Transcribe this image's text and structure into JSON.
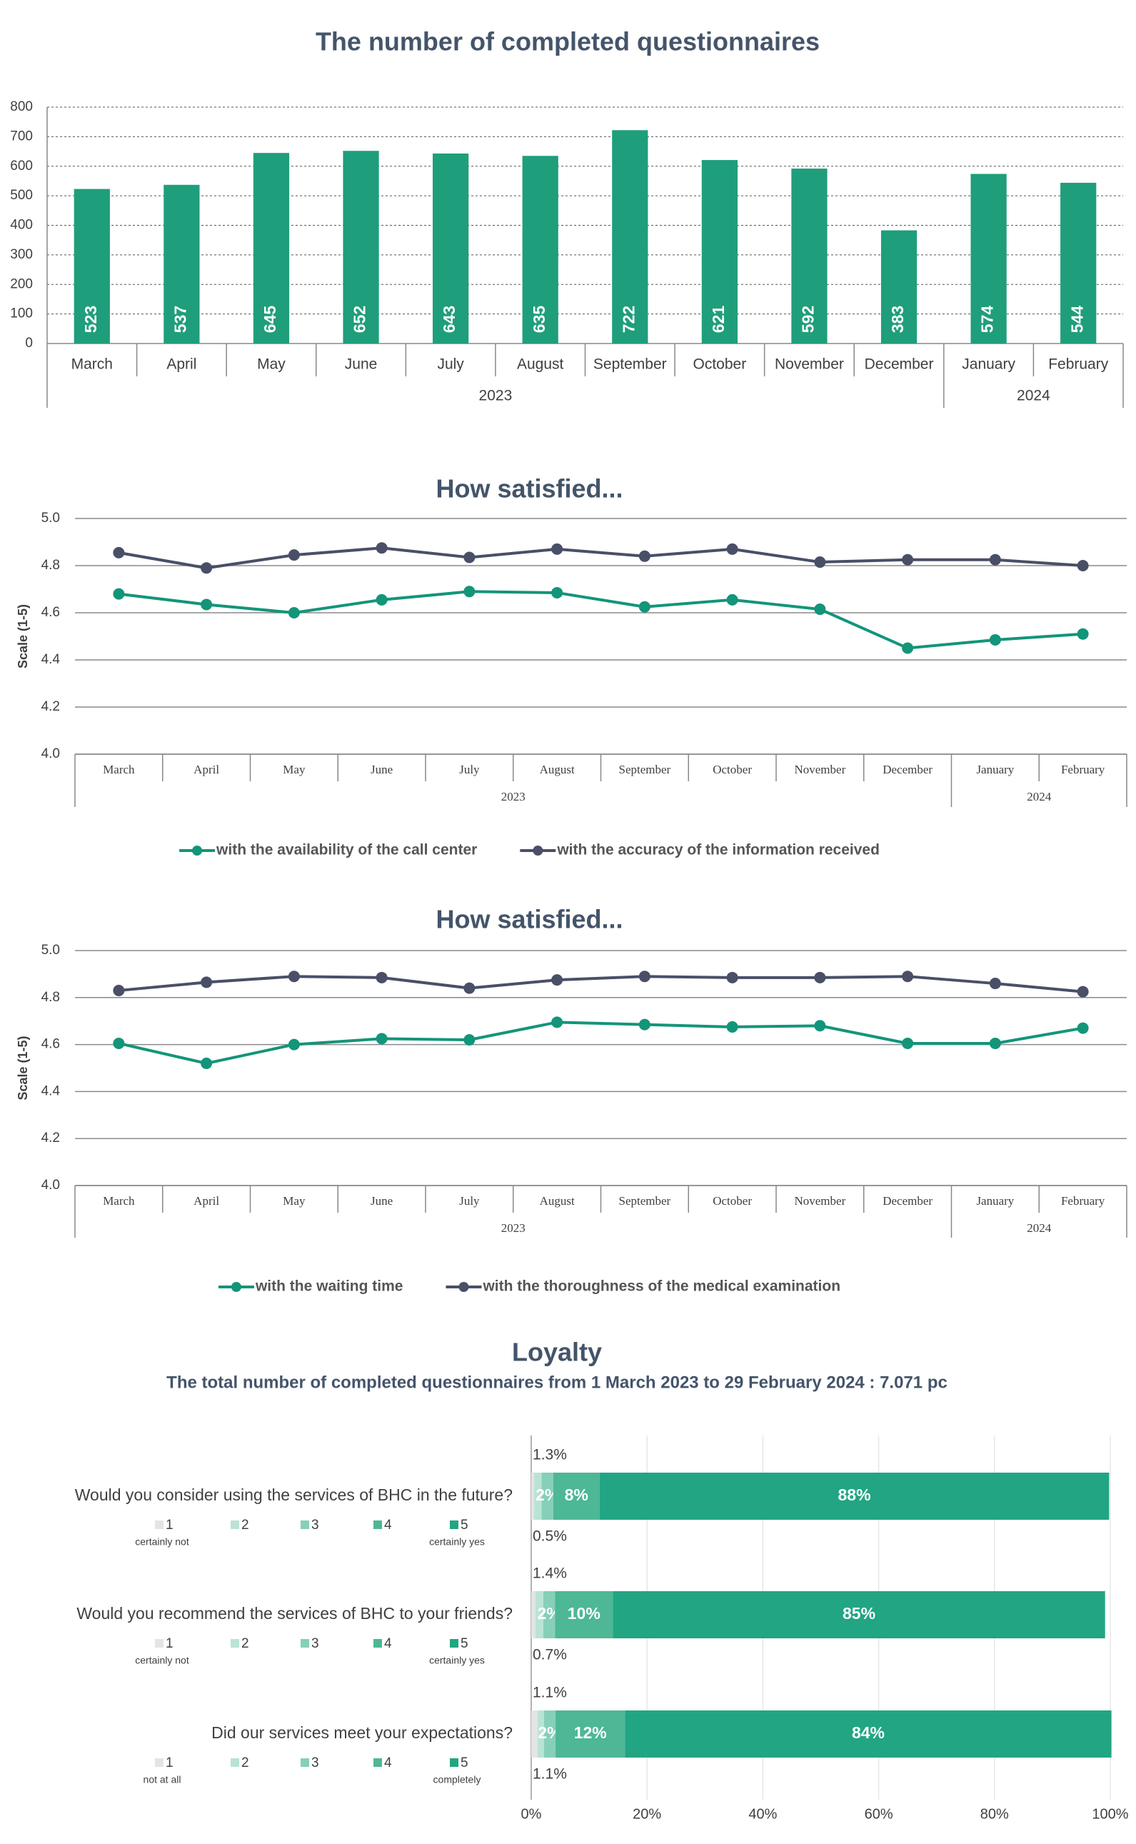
{
  "chart_data": [
    {
      "type": "bar",
      "title": "The number of completed questionnaires",
      "categories": [
        "March",
        "April",
        "May",
        "June",
        "July",
        "August",
        "September",
        "October",
        "November",
        "December",
        "January",
        "February"
      ],
      "groups": [
        {
          "name": "2023",
          "count": 10
        },
        {
          "name": "2024",
          "count": 2
        }
      ],
      "values": [
        523,
        537,
        645,
        652,
        643,
        635,
        722,
        621,
        592,
        383,
        574,
        544
      ],
      "color": "#1f9e7b",
      "ylim": [
        0,
        800
      ],
      "yticks": [
        0,
        100,
        200,
        300,
        400,
        500,
        600,
        700,
        800
      ],
      "grid": true
    },
    {
      "type": "line",
      "title": "How satisfied...",
      "ylabel": "Scale (1-5)",
      "categories": [
        "March",
        "April",
        "May",
        "June",
        "July",
        "August",
        "September",
        "October",
        "November",
        "December",
        "January",
        "February"
      ],
      "groups": [
        {
          "name": "2023",
          "count": 10
        },
        {
          "name": "2024",
          "count": 2
        }
      ],
      "series": [
        {
          "name": "with the availability of the call center",
          "color": "#13957a",
          "values": [
            4.68,
            4.635,
            4.6,
            4.655,
            4.69,
            4.685,
            4.625,
            4.655,
            4.615,
            4.45,
            4.485,
            4.51
          ]
        },
        {
          "name": "with the accuracy of the information received",
          "color": "#4a4f68",
          "values": [
            4.855,
            4.79,
            4.845,
            4.875,
            4.835,
            4.87,
            4.84,
            4.87,
            4.815,
            4.825,
            4.825,
            4.8
          ]
        }
      ],
      "ylim": [
        4,
        5
      ],
      "yticks": [
        {
          "value": 4,
          "label": "4.0"
        },
        4.2,
        4.4,
        4.6,
        4.8,
        {
          "value": 5,
          "label": "5.0"
        }
      ],
      "grid": true
    },
    {
      "type": "line",
      "title": "How satisfied...",
      "ylabel": "Scale (1-5)",
      "categories": [
        "March",
        "April",
        "May",
        "June",
        "July",
        "August",
        "September",
        "October",
        "November",
        "December",
        "January",
        "February"
      ],
      "groups": [
        {
          "name": "2023",
          "count": 10
        },
        {
          "name": "2024",
          "count": 2
        }
      ],
      "series": [
        {
          "name": "with the waiting time",
          "color": "#13957a",
          "values": [
            4.605,
            4.52,
            4.6,
            4.625,
            4.62,
            4.695,
            4.685,
            4.675,
            4.68,
            4.605,
            4.605,
            4.67
          ]
        },
        {
          "name": "with the thoroughness of the medical examination",
          "color": "#4a4f68",
          "values": [
            4.83,
            4.865,
            4.89,
            4.885,
            4.84,
            4.875,
            4.89,
            4.885,
            4.885,
            4.89,
            4.86,
            4.825
          ]
        }
      ],
      "ylim": [
        4,
        5
      ],
      "yticks": [
        {
          "value": 4,
          "label": "4.0"
        },
        4.2,
        4.4,
        4.6,
        4.8,
        {
          "value": 5,
          "label": "5.0"
        }
      ],
      "grid": true
    },
    {
      "type": "stacked-hbar",
      "title": "Loyalty",
      "subtitle": "The total number of completed questionnaires from 1 March 2023 to 29 February 2024 : 7.071 pc",
      "categories": [
        "Would you consider using the services of BHC in the future?",
        "Would you recommend the services of BHC to your friends?",
        "Did our services meet your expectations?"
      ],
      "scale_labels": [
        [
          "certainly not",
          "certainly yes"
        ],
        [
          "certainly not",
          "certainly yes"
        ],
        [
          "not at all",
          "completely"
        ]
      ],
      "series": [
        {
          "name": "1",
          "color": "#e4e4e4",
          "values": [
            0.5,
            0.7,
            1.1
          ],
          "value_labels": [
            "0.5%",
            "0.7%",
            "1.1%"
          ]
        },
        {
          "name": "2",
          "color": "#b9e3d6",
          "values": [
            1.3,
            1.4,
            1.1
          ],
          "value_labels": [
            "1.3%",
            "1.4%",
            "1.1%"
          ]
        },
        {
          "name": "3",
          "color": "#86cfb8",
          "values": [
            2,
            2,
            2
          ],
          "value_labels": [
            "2%",
            "2%",
            "2%"
          ]
        },
        {
          "name": "4",
          "color": "#4db796",
          "values": [
            8,
            10,
            12
          ],
          "value_labels": [
            "8%",
            "10%",
            "12%"
          ]
        },
        {
          "name": "5",
          "color": "#21a583",
          "values": [
            88,
            85,
            84
          ],
          "value_labels": [
            "88%",
            "85%",
            "84%"
          ]
        }
      ],
      "xlim": [
        0,
        100
      ],
      "xticks": [
        {
          "value": 0,
          "label": "0%"
        },
        {
          "value": 20,
          "label": "20%"
        },
        {
          "value": 40,
          "label": "40%"
        },
        {
          "value": 60,
          "label": "60%"
        },
        {
          "value": 80,
          "label": "80%"
        },
        {
          "value": 100,
          "label": "100%"
        }
      ],
      "grid": true
    }
  ]
}
